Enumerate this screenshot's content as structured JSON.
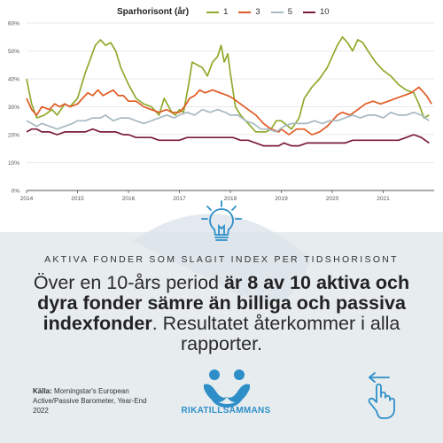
{
  "chart_data": {
    "type": "line",
    "title": "",
    "xlabel": "",
    "ylabel": "",
    "legend": {
      "title": "Sparhorisont (år)",
      "position": "top"
    },
    "ylim": [
      0,
      60
    ],
    "yticks": [
      "0%",
      "10%",
      "20%",
      "30%",
      "40%",
      "50%",
      "60%"
    ],
    "xlim": [
      2014,
      2022
    ],
    "xticks": [
      "2014",
      "2015",
      "2016",
      "2017",
      "2018",
      "2019",
      "2020",
      "2021"
    ],
    "grid": "horizontal",
    "series": [
      {
        "name": "1",
        "color": "#8faa2c",
        "points": [
          [
            2014.0,
            40
          ],
          [
            2014.1,
            31
          ],
          [
            2014.2,
            26
          ],
          [
            2014.35,
            27
          ],
          [
            2014.5,
            29
          ],
          [
            2014.6,
            27
          ],
          [
            2014.75,
            31
          ],
          [
            2014.85,
            30
          ],
          [
            2015.0,
            33
          ],
          [
            2015.15,
            42
          ],
          [
            2015.25,
            47
          ],
          [
            2015.35,
            52
          ],
          [
            2015.45,
            54
          ],
          [
            2015.55,
            52
          ],
          [
            2015.65,
            53
          ],
          [
            2015.75,
            50
          ],
          [
            2015.85,
            44
          ],
          [
            2016.0,
            38
          ],
          [
            2016.15,
            33
          ],
          [
            2016.3,
            31
          ],
          [
            2016.45,
            30
          ],
          [
            2016.6,
            27
          ],
          [
            2016.7,
            33
          ],
          [
            2016.85,
            28
          ],
          [
            2016.92,
            27
          ],
          [
            2017.0,
            29
          ],
          [
            2017.08,
            28
          ],
          [
            2017.18,
            38
          ],
          [
            2017.25,
            46
          ],
          [
            2017.35,
            45
          ],
          [
            2017.45,
            44
          ],
          [
            2017.55,
            41
          ],
          [
            2017.65,
            46
          ],
          [
            2017.75,
            48
          ],
          [
            2017.82,
            52
          ],
          [
            2017.88,
            46
          ],
          [
            2017.95,
            49
          ],
          [
            2018.0,
            42
          ],
          [
            2018.1,
            30
          ],
          [
            2018.2,
            27
          ],
          [
            2018.3,
            25
          ],
          [
            2018.4,
            23
          ],
          [
            2018.5,
            21
          ],
          [
            2018.6,
            21
          ],
          [
            2018.7,
            21
          ],
          [
            2018.8,
            22
          ],
          [
            2018.9,
            25
          ],
          [
            2019.0,
            25
          ],
          [
            2019.2,
            22
          ],
          [
            2019.35,
            26
          ],
          [
            2019.45,
            33
          ],
          [
            2019.6,
            37
          ],
          [
            2019.75,
            40
          ],
          [
            2019.9,
            44
          ],
          [
            2020.0,
            48
          ],
          [
            2020.1,
            52
          ],
          [
            2020.2,
            55
          ],
          [
            2020.3,
            53
          ],
          [
            2020.4,
            50
          ],
          [
            2020.5,
            54
          ],
          [
            2020.6,
            53
          ],
          [
            2020.7,
            50
          ],
          [
            2020.85,
            46
          ],
          [
            2021.0,
            43
          ],
          [
            2021.15,
            41
          ],
          [
            2021.3,
            38
          ],
          [
            2021.45,
            36
          ],
          [
            2021.6,
            35
          ],
          [
            2021.7,
            31
          ],
          [
            2021.8,
            26
          ],
          [
            2021.9,
            27
          ]
        ]
      },
      {
        "name": "3",
        "color": "#e05a23",
        "points": [
          [
            2014.0,
            33
          ],
          [
            2014.1,
            29
          ],
          [
            2014.2,
            27
          ],
          [
            2014.3,
            30
          ],
          [
            2014.45,
            29
          ],
          [
            2014.55,
            31
          ],
          [
            2014.65,
            30
          ],
          [
            2014.75,
            31
          ],
          [
            2014.85,
            30
          ],
          [
            2015.0,
            31
          ],
          [
            2015.1,
            33
          ],
          [
            2015.2,
            35
          ],
          [
            2015.3,
            34
          ],
          [
            2015.4,
            36
          ],
          [
            2015.5,
            34
          ],
          [
            2015.6,
            35
          ],
          [
            2015.7,
            36
          ],
          [
            2015.8,
            34
          ],
          [
            2015.9,
            34
          ],
          [
            2016.0,
            32
          ],
          [
            2016.15,
            32
          ],
          [
            2016.3,
            30
          ],
          [
            2016.45,
            29
          ],
          [
            2016.6,
            28
          ],
          [
            2016.75,
            29
          ],
          [
            2016.85,
            28
          ],
          [
            2017.0,
            28
          ],
          [
            2017.1,
            30
          ],
          [
            2017.2,
            33
          ],
          [
            2017.3,
            34
          ],
          [
            2017.4,
            36
          ],
          [
            2017.5,
            35
          ],
          [
            2017.65,
            36
          ],
          [
            2017.8,
            35
          ],
          [
            2017.95,
            34
          ],
          [
            2018.05,
            33
          ],
          [
            2018.2,
            31
          ],
          [
            2018.35,
            29
          ],
          [
            2018.5,
            27
          ],
          [
            2018.65,
            24
          ],
          [
            2018.8,
            22
          ],
          [
            2018.95,
            21
          ],
          [
            2019.0,
            22
          ],
          [
            2019.15,
            20
          ],
          [
            2019.3,
            22
          ],
          [
            2019.45,
            22
          ],
          [
            2019.6,
            20
          ],
          [
            2019.75,
            21
          ],
          [
            2019.9,
            23
          ],
          [
            2020.0,
            25
          ],
          [
            2020.1,
            27
          ],
          [
            2020.2,
            28
          ],
          [
            2020.35,
            27
          ],
          [
            2020.5,
            29
          ],
          [
            2020.65,
            31
          ],
          [
            2020.8,
            32
          ],
          [
            2020.95,
            31
          ],
          [
            2021.1,
            32
          ],
          [
            2021.25,
            33
          ],
          [
            2021.4,
            34
          ],
          [
            2021.55,
            35
          ],
          [
            2021.7,
            37
          ],
          [
            2021.85,
            34
          ],
          [
            2021.95,
            31
          ]
        ]
      },
      {
        "name": "5",
        "color": "#a7b9c2",
        "points": [
          [
            2014.0,
            25
          ],
          [
            2014.1,
            24
          ],
          [
            2014.2,
            23
          ],
          [
            2014.3,
            24
          ],
          [
            2014.45,
            23
          ],
          [
            2014.6,
            22
          ],
          [
            2014.75,
            23
          ],
          [
            2014.9,
            24
          ],
          [
            2015.0,
            25
          ],
          [
            2015.15,
            25
          ],
          [
            2015.3,
            26
          ],
          [
            2015.45,
            26
          ],
          [
            2015.55,
            27
          ],
          [
            2015.7,
            25
          ],
          [
            2015.85,
            26
          ],
          [
            2016.0,
            26
          ],
          [
            2016.15,
            25
          ],
          [
            2016.3,
            24
          ],
          [
            2016.45,
            25
          ],
          [
            2016.6,
            26
          ],
          [
            2016.75,
            27
          ],
          [
            2016.9,
            26
          ],
          [
            2017.0,
            27
          ],
          [
            2017.15,
            28
          ],
          [
            2017.3,
            27
          ],
          [
            2017.45,
            29
          ],
          [
            2017.6,
            28
          ],
          [
            2017.75,
            29
          ],
          [
            2017.9,
            28
          ],
          [
            2018.0,
            27
          ],
          [
            2018.15,
            27
          ],
          [
            2018.3,
            25
          ],
          [
            2018.45,
            24
          ],
          [
            2018.6,
            22
          ],
          [
            2018.75,
            22
          ],
          [
            2018.9,
            21
          ],
          [
            2019.05,
            23
          ],
          [
            2019.2,
            24
          ],
          [
            2019.35,
            24
          ],
          [
            2019.5,
            24
          ],
          [
            2019.65,
            25
          ],
          [
            2019.8,
            24
          ],
          [
            2019.95,
            25
          ],
          [
            2020.1,
            25
          ],
          [
            2020.25,
            26
          ],
          [
            2020.4,
            27
          ],
          [
            2020.55,
            26
          ],
          [
            2020.7,
            27
          ],
          [
            2020.85,
            27
          ],
          [
            2021.0,
            26
          ],
          [
            2021.15,
            28
          ],
          [
            2021.3,
            27
          ],
          [
            2021.45,
            27
          ],
          [
            2021.6,
            28
          ],
          [
            2021.75,
            27
          ],
          [
            2021.9,
            25
          ]
        ]
      },
      {
        "name": "10",
        "color": "#7a1c3a",
        "points": [
          [
            2014.0,
            21
          ],
          [
            2014.1,
            22
          ],
          [
            2014.2,
            22
          ],
          [
            2014.3,
            21
          ],
          [
            2014.45,
            21
          ],
          [
            2014.6,
            20
          ],
          [
            2014.75,
            21
          ],
          [
            2014.9,
            21
          ],
          [
            2015.0,
            21
          ],
          [
            2015.15,
            21
          ],
          [
            2015.3,
            22
          ],
          [
            2015.45,
            21
          ],
          [
            2015.6,
            21
          ],
          [
            2015.75,
            21
          ],
          [
            2015.9,
            20
          ],
          [
            2016.0,
            20
          ],
          [
            2016.15,
            19
          ],
          [
            2016.3,
            19
          ],
          [
            2016.45,
            19
          ],
          [
            2016.6,
            18
          ],
          [
            2016.75,
            18
          ],
          [
            2016.9,
            18
          ],
          [
            2017.0,
            18
          ],
          [
            2017.15,
            19
          ],
          [
            2017.3,
            19
          ],
          [
            2017.45,
            19
          ],
          [
            2017.6,
            19
          ],
          [
            2017.75,
            19
          ],
          [
            2017.9,
            19
          ],
          [
            2018.05,
            19
          ],
          [
            2018.2,
            18
          ],
          [
            2018.35,
            18
          ],
          [
            2018.5,
            17
          ],
          [
            2018.65,
            16
          ],
          [
            2018.8,
            16
          ],
          [
            2018.95,
            16
          ],
          [
            2019.05,
            17
          ],
          [
            2019.2,
            16
          ],
          [
            2019.35,
            16
          ],
          [
            2019.5,
            17
          ],
          [
            2019.65,
            17
          ],
          [
            2019.8,
            17
          ],
          [
            2019.95,
            17
          ],
          [
            2020.1,
            17
          ],
          [
            2020.25,
            17
          ],
          [
            2020.4,
            18
          ],
          [
            2020.55,
            18
          ],
          [
            2020.7,
            18
          ],
          [
            2020.85,
            18
          ],
          [
            2021.0,
            18
          ],
          [
            2021.15,
            18
          ],
          [
            2021.3,
            18
          ],
          [
            2021.45,
            19
          ],
          [
            2021.6,
            20
          ],
          [
            2021.75,
            19
          ],
          [
            2021.9,
            17
          ]
        ]
      }
    ]
  },
  "panel": {
    "kicker": "AKTIVA FONDER SOM SLAGIT INDEX PER TIDSHORISONT",
    "headline_p1": "Över en 10-års period ",
    "headline_b1": "är 8 av 10 aktiva och dyra fonder sämre än billiga och passiva indexfonder",
    "headline_p2": ". Resultatet återkommer i alla rapporter.",
    "source_label": "Källa:",
    "source_text": " Morningstar's European Active/Passive Barometer, Year-End 2022",
    "brand": "RIKATILLSAMMANS",
    "colors": {
      "accent": "#2e8fc8",
      "panel_bg": "#e7ecef"
    },
    "icons": [
      "lightbulb-icon",
      "people-logo-icon",
      "swipe-left-icon"
    ]
  }
}
